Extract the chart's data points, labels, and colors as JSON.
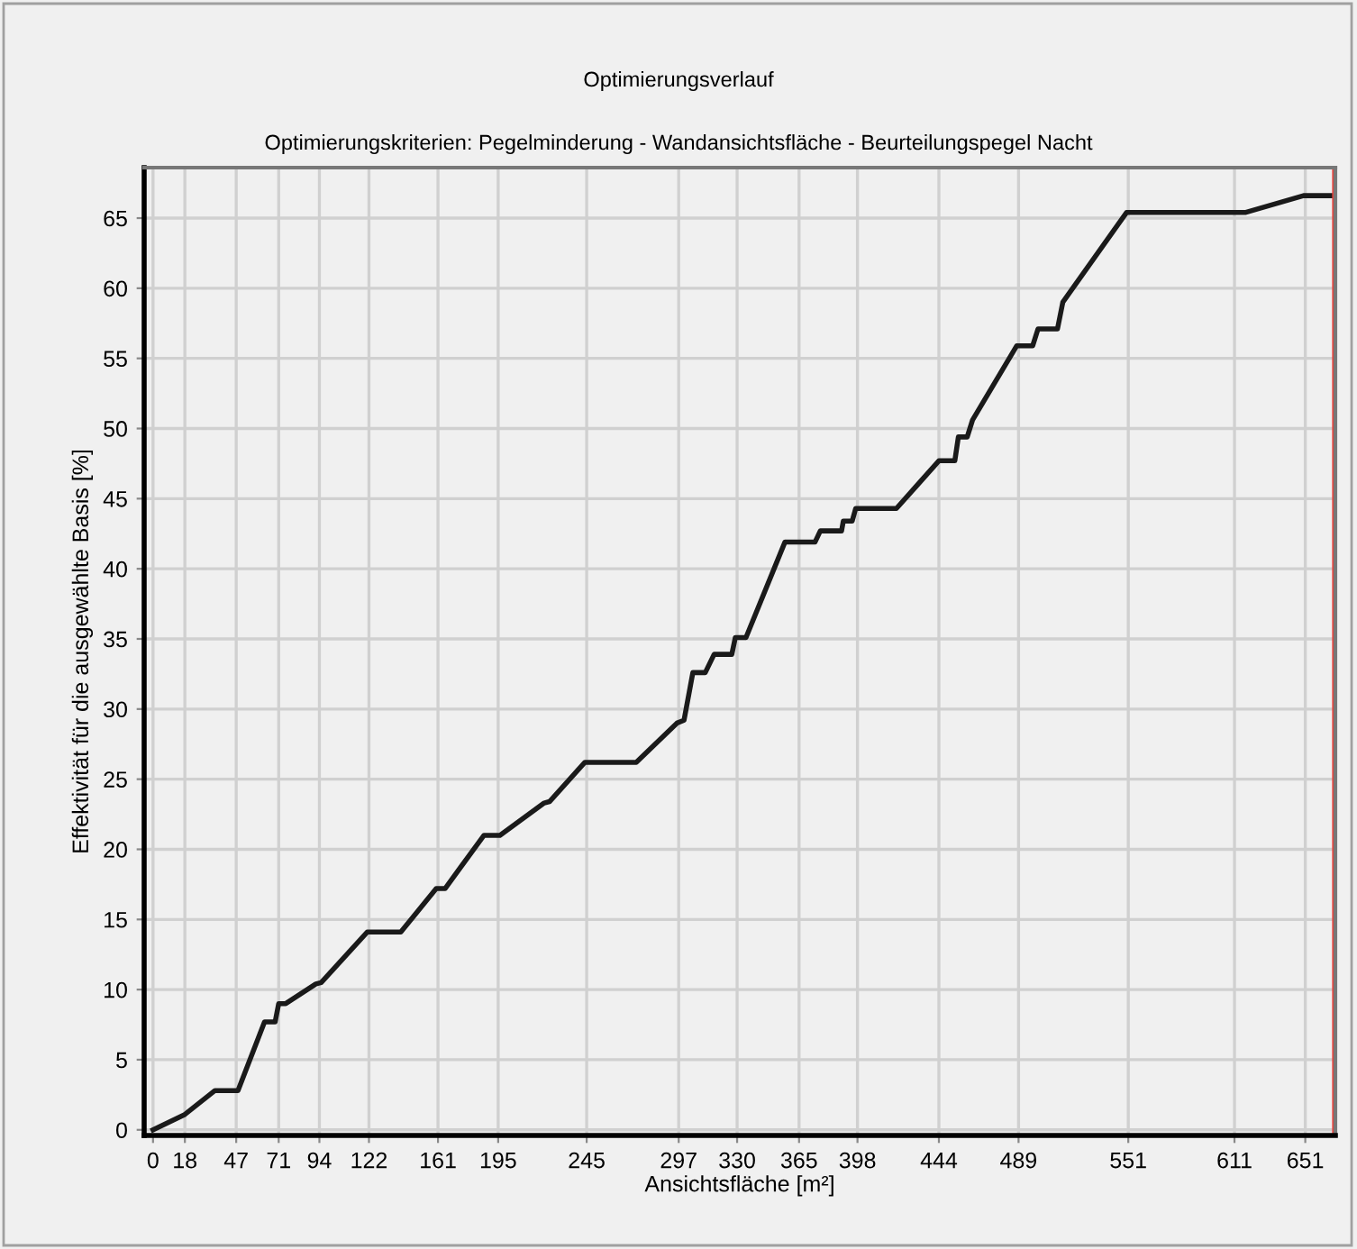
{
  "chart_data": {
    "type": "line",
    "title": "Optimierungsverlauf",
    "subtitle": "Optimierungskriterien: Pegelminderung - Wandansichtsfläche - Beurteilungspegel Nacht",
    "xlabel": "Ansichtsfläche [m²]",
    "ylabel": "Effektivität für die ausgewählte Basis [%]",
    "series": [
      {
        "color": "#1a1a1a",
        "x": [
          0,
          18,
          35,
          48,
          63,
          69,
          71,
          75,
          92,
          95,
          121,
          140,
          160,
          165,
          187,
          196,
          221,
          224,
          244,
          273,
          296,
          300,
          305,
          312,
          317,
          327,
          329,
          335,
          357,
          374,
          377,
          389,
          390,
          395,
          397,
          420,
          444,
          453,
          455,
          460,
          463,
          488,
          497,
          500,
          511,
          514,
          550,
          617,
          650,
          667
        ],
        "values": [
          0,
          1.1,
          2.8,
          2.8,
          7.7,
          7.7,
          9.0,
          9.0,
          10.4,
          10.5,
          14.1,
          14.1,
          17.2,
          17.2,
          21.0,
          21.0,
          23.3,
          23.4,
          26.2,
          26.2,
          29.0,
          29.2,
          32.6,
          32.6,
          33.9,
          33.9,
          35.1,
          35.1,
          41.9,
          41.9,
          42.7,
          42.7,
          43.4,
          43.4,
          44.3,
          44.3,
          47.7,
          47.7,
          49.4,
          49.4,
          50.6,
          55.9,
          55.9,
          57.1,
          57.1,
          59.0,
          65.4,
          65.4,
          66.6,
          66.6
        ]
      }
    ],
    "ref_lines": [
      {
        "axis": "x",
        "value": 667,
        "color": "#e8413c"
      }
    ],
    "xlim": [
      -5,
      668
    ],
    "ylim": [
      -0.4,
      68.6
    ],
    "xticks": [
      0,
      18,
      47,
      71,
      94,
      122,
      161,
      195,
      245,
      297,
      330,
      365,
      398,
      444,
      489,
      551,
      611,
      651
    ],
    "yticks": [
      0,
      5,
      10,
      15,
      20,
      25,
      30,
      35,
      40,
      45,
      50,
      55,
      60,
      65
    ],
    "grid": true,
    "legend": false,
    "marker": "none",
    "line_style": "solid"
  }
}
